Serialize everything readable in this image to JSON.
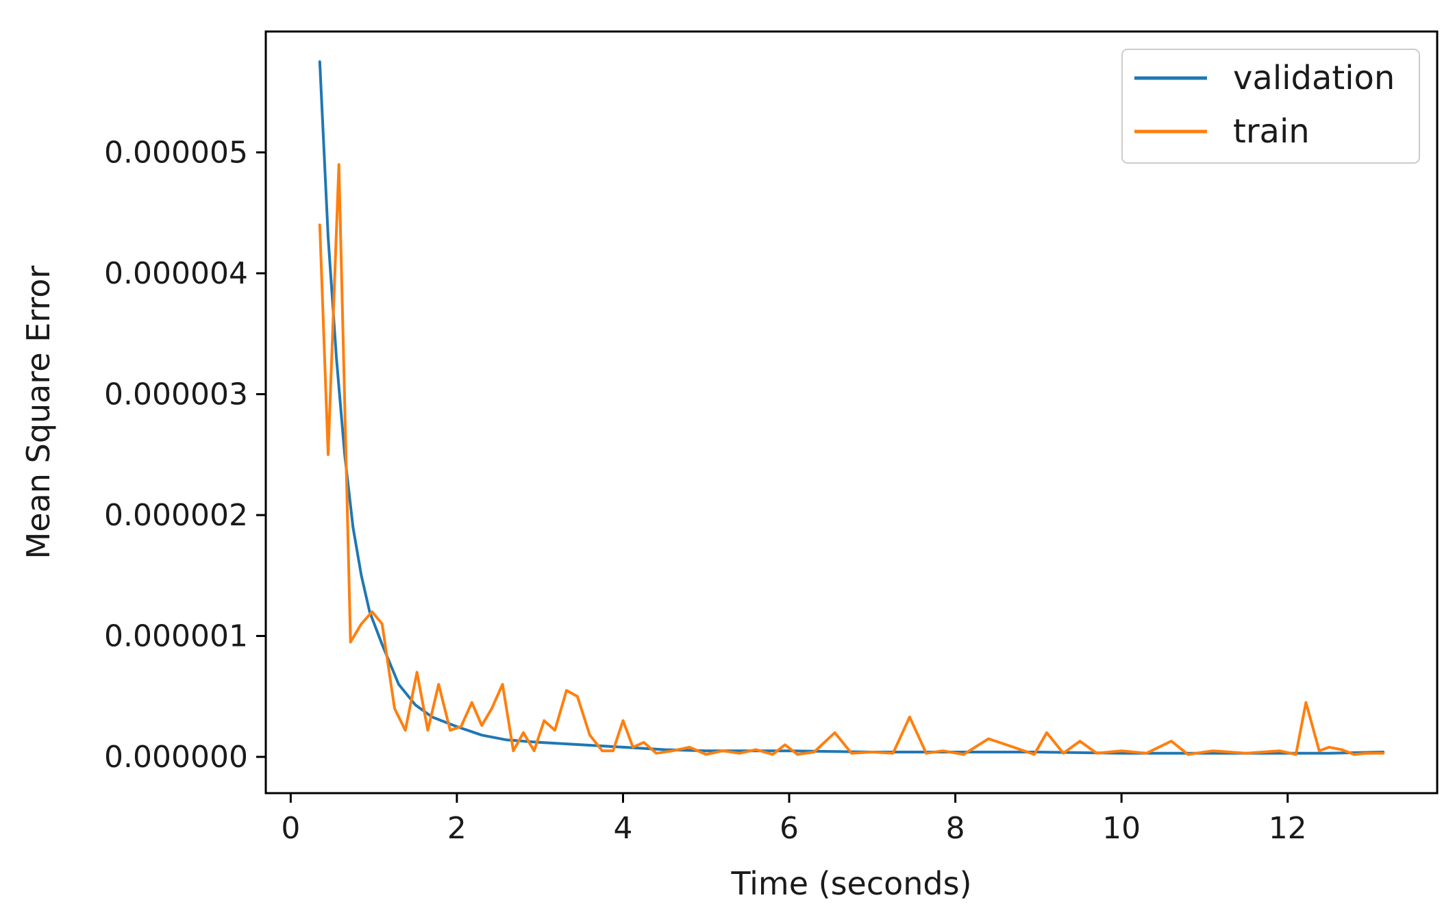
{
  "chart_data": {
    "type": "line",
    "xlabel": "Time (seconds)",
    "ylabel": "Mean Square Error",
    "xlim": [
      -0.3,
      13.8
    ],
    "ylim": [
      -3e-07,
      6e-06
    ],
    "x_ticks": [
      0,
      2,
      4,
      6,
      8,
      10,
      12
    ],
    "x_tick_labels": [
      "0",
      "2",
      "4",
      "6",
      "8",
      "10",
      "12"
    ],
    "y_ticks": [
      0,
      1e-06,
      2e-06,
      3e-06,
      4e-06,
      5e-06
    ],
    "y_tick_labels": [
      "0.000000",
      "0.000001",
      "0.000002",
      "0.000003",
      "0.000004",
      "0.000005"
    ],
    "grid": false,
    "legend_position": "top-right",
    "series": [
      {
        "name": "validation",
        "color": "#1f77b4",
        "x": [
          0.35,
          0.45,
          0.55,
          0.65,
          0.75,
          0.85,
          0.95,
          1.1,
          1.3,
          1.5,
          1.7,
          2.0,
          2.3,
          2.6,
          3.0,
          3.5,
          4.0,
          4.5,
          5.0,
          6.0,
          7.0,
          8.0,
          9.0,
          10.0,
          11.0,
          12.0,
          12.5,
          13.15
        ],
        "y": [
          5.75e-06,
          4.3e-06,
          3.3e-06,
          2.5e-06,
          1.9e-06,
          1.5e-06,
          1.2e-06,
          9.3e-07,
          6e-07,
          4.3e-07,
          3.3e-07,
          2.5e-07,
          1.8e-07,
          1.4e-07,
          1.2e-07,
          1e-07,
          8e-08,
          6e-08,
          5e-08,
          5e-08,
          4e-08,
          4e-08,
          4e-08,
          3e-08,
          3e-08,
          3e-08,
          3e-08,
          4e-08
        ]
      },
      {
        "name": "train",
        "color": "#ff7f0e",
        "x": [
          0.35,
          0.45,
          0.58,
          0.72,
          0.85,
          0.98,
          1.1,
          1.25,
          1.38,
          1.52,
          1.65,
          1.78,
          1.92,
          2.05,
          2.18,
          2.3,
          2.42,
          2.55,
          2.68,
          2.8,
          2.93,
          3.05,
          3.18,
          3.32,
          3.45,
          3.6,
          3.75,
          3.88,
          4.0,
          4.12,
          4.25,
          4.4,
          4.6,
          4.8,
          5.0,
          5.2,
          5.4,
          5.6,
          5.8,
          5.95,
          6.1,
          6.3,
          6.55,
          6.75,
          7.0,
          7.25,
          7.45,
          7.65,
          7.85,
          8.1,
          8.4,
          8.7,
          8.95,
          9.1,
          9.3,
          9.5,
          9.7,
          10.0,
          10.3,
          10.6,
          10.8,
          11.1,
          11.5,
          11.9,
          12.1,
          12.22,
          12.38,
          12.5,
          12.65,
          12.8,
          12.95,
          13.15
        ],
        "y": [
          4.4e-06,
          2.5e-06,
          4.9e-06,
          9.5e-07,
          1.1e-06,
          1.2e-06,
          1.1e-06,
          4e-07,
          2.2e-07,
          7e-07,
          2.2e-07,
          6e-07,
          2.2e-07,
          2.5e-07,
          4.5e-07,
          2.6e-07,
          4e-07,
          6e-07,
          5e-08,
          2e-07,
          5e-08,
          3e-07,
          2.2e-07,
          5.5e-07,
          5e-07,
          1.8e-07,
          5e-08,
          5e-08,
          3e-07,
          8e-08,
          1.2e-07,
          3e-08,
          5e-08,
          8e-08,
          2e-08,
          5e-08,
          3e-08,
          6e-08,
          2e-08,
          1e-07,
          2e-08,
          4e-08,
          2e-07,
          3e-08,
          4e-08,
          3e-08,
          3.3e-07,
          3e-08,
          5e-08,
          2e-08,
          1.5e-07,
          8e-08,
          2e-08,
          2e-07,
          3e-08,
          1.3e-07,
          3e-08,
          5e-08,
          3e-08,
          1.3e-07,
          2e-08,
          5e-08,
          3e-08,
          5e-08,
          2e-08,
          4.5e-07,
          5e-08,
          8e-08,
          6e-08,
          2e-08,
          3e-08,
          3e-08
        ]
      }
    ]
  }
}
